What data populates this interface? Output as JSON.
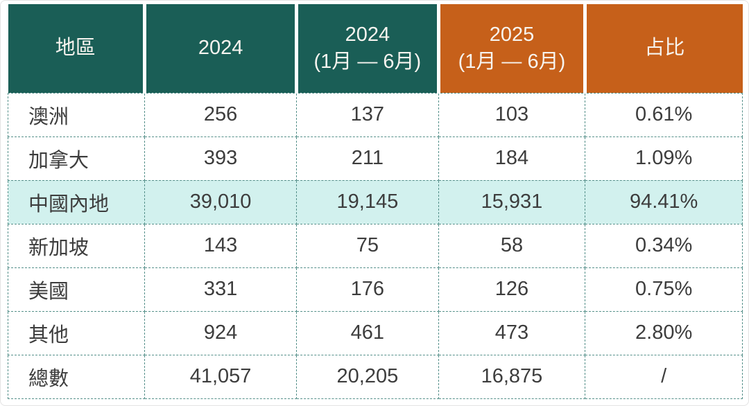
{
  "colors": {
    "header_teal": "#1a5e56",
    "header_orange": "#c6601a",
    "highlight_row": "#d2f1ee",
    "border_dash": "#55908a",
    "body_text": "#3d3d3d",
    "header_text": "#f7f4ef"
  },
  "table": {
    "columns": [
      {
        "lines": [
          "地區"
        ],
        "accent": "teal"
      },
      {
        "lines": [
          "2024"
        ],
        "accent": "teal"
      },
      {
        "lines": [
          "2024",
          "(1月 — 6月)"
        ],
        "accent": "teal"
      },
      {
        "lines": [
          "2025",
          "(1月 — 6月)"
        ],
        "accent": "orange"
      },
      {
        "lines": [
          "占比"
        ],
        "accent": "orange"
      }
    ],
    "rows": [
      {
        "region": "澳洲",
        "values": [
          "256",
          "137",
          "103",
          "0.61%"
        ],
        "highlight": false
      },
      {
        "region": "加拿大",
        "values": [
          "393",
          "211",
          "184",
          "1.09%"
        ],
        "highlight": false
      },
      {
        "region": "中國內地",
        "values": [
          "39,010",
          "19,145",
          "15,931",
          "94.41%"
        ],
        "highlight": true
      },
      {
        "region": "新加坡",
        "values": [
          "143",
          "75",
          "58",
          "0.34%"
        ],
        "highlight": false
      },
      {
        "region": "美國",
        "values": [
          "331",
          "176",
          "126",
          "0.75%"
        ],
        "highlight": false
      },
      {
        "region": "其他",
        "values": [
          "924",
          "461",
          "473",
          "2.80%"
        ],
        "highlight": false
      },
      {
        "region": "總數",
        "values": [
          "41,057",
          "20,205",
          "16,875",
          "/"
        ],
        "highlight": false
      }
    ]
  },
  "chart_data": {
    "type": "table",
    "title": "",
    "columns": [
      "地區",
      "2024",
      "2024 (1月 — 6月)",
      "2025 (1月 — 6月)",
      "占比"
    ],
    "rows": [
      [
        "澳洲",
        256,
        137,
        103,
        "0.61%"
      ],
      [
        "加拿大",
        393,
        211,
        184,
        "1.09%"
      ],
      [
        "中國內地",
        39010,
        19145,
        15931,
        "94.41%"
      ],
      [
        "新加坡",
        143,
        75,
        58,
        "0.34%"
      ],
      [
        "美國",
        331,
        176,
        126,
        "0.75%"
      ],
      [
        "其他",
        924,
        461,
        473,
        "2.80%"
      ],
      [
        "總數",
        41057,
        20205,
        16875,
        "/"
      ]
    ],
    "highlighted_row": "中國內地",
    "layout": "header row teal for 2024 columns and region, orange for 2025 and share columns; dashed teal grid lines; aqua highlight on 中國內地 row"
  }
}
